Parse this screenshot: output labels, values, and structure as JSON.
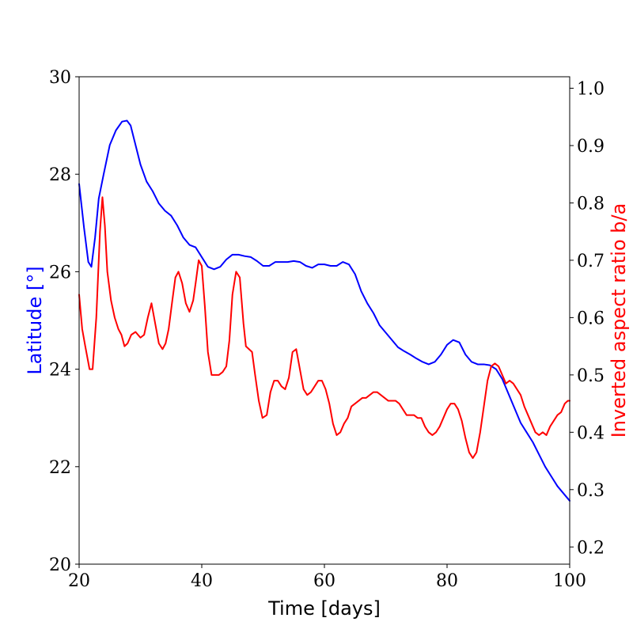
{
  "chart_data": {
    "type": "line",
    "xlabel": "Time [days]",
    "ylabel_left": "Latitude [°]",
    "ylabel_right": "Inverted aspect ratio b/a",
    "xlim": [
      20,
      100
    ],
    "ylim_left": [
      20,
      30
    ],
    "ylim_right": [
      0.17,
      1.02
    ],
    "x_ticks": [
      20,
      40,
      60,
      80,
      100
    ],
    "y_left_ticks": [
      20,
      22,
      24,
      26,
      28,
      30
    ],
    "y_right_ticks": [
      0.2,
      0.3,
      0.4,
      0.5,
      0.6,
      0.7,
      0.8,
      0.9,
      1.0
    ],
    "x_tick_labels": [
      "20",
      "40",
      "60",
      "80",
      "100"
    ],
    "y_left_tick_labels": [
      "20",
      "22",
      "24",
      "26",
      "28",
      "30"
    ],
    "y_right_tick_labels": [
      "0.2",
      "0.3",
      "0.4",
      "0.5",
      "0.6",
      "0.7",
      "0.8",
      "0.9",
      "1.0"
    ],
    "colors": {
      "latitude": "#0000ff",
      "aspect": "#ff0000",
      "axes": "#000000"
    },
    "series": [
      {
        "name": "Latitude",
        "axis": "left",
        "x": [
          20,
          20.8,
          21.5,
          22,
          22.6,
          23.2,
          24,
          25,
          26,
          27,
          27.8,
          28.4,
          29,
          30,
          31,
          32,
          33,
          34,
          35,
          36,
          37,
          38,
          39,
          40,
          41,
          42,
          43,
          44,
          45,
          46,
          47,
          48,
          49,
          50,
          51,
          52,
          53,
          54,
          55,
          56,
          57,
          58,
          59,
          60,
          61,
          62,
          63,
          64,
          65,
          66,
          67,
          68,
          69,
          70,
          71,
          72,
          73,
          74,
          75,
          76,
          77,
          78,
          79,
          80,
          81,
          82,
          83,
          84,
          85,
          86,
          87,
          88,
          89,
          90,
          91,
          92,
          93,
          94,
          95,
          96,
          97,
          98,
          99,
          100
        ],
        "y": [
          27.8,
          26.9,
          26.2,
          26.1,
          26.7,
          27.5,
          28.0,
          28.6,
          28.9,
          29.08,
          29.1,
          29.0,
          28.7,
          28.2,
          27.85,
          27.65,
          27.4,
          27.25,
          27.15,
          26.95,
          26.7,
          26.55,
          26.5,
          26.3,
          26.1,
          26.05,
          26.1,
          26.25,
          26.35,
          26.35,
          26.32,
          26.3,
          26.22,
          26.12,
          26.12,
          26.2,
          26.2,
          26.2,
          26.22,
          26.2,
          26.12,
          26.08,
          26.15,
          26.15,
          26.12,
          26.12,
          26.2,
          26.15,
          25.95,
          25.6,
          25.35,
          25.15,
          24.9,
          24.75,
          24.6,
          24.45,
          24.37,
          24.3,
          24.22,
          24.15,
          24.1,
          24.15,
          24.3,
          24.5,
          24.6,
          24.55,
          24.3,
          24.15,
          24.1,
          24.1,
          24.08,
          24.0,
          23.8,
          23.5,
          23.2,
          22.9,
          22.7,
          22.5,
          22.25,
          22.0,
          21.8,
          21.6,
          21.45,
          21.3
        ]
      },
      {
        "name": "Inverted aspect ratio b/a",
        "axis": "right",
        "x": [
          20,
          20.5,
          21,
          21.7,
          22.2,
          22.8,
          23.4,
          23.8,
          24.2,
          24.6,
          25.2,
          25.8,
          26.4,
          26.9,
          27.4,
          27.9,
          28.5,
          29.2,
          30,
          30.6,
          31.2,
          31.8,
          32.4,
          33,
          33.6,
          34.1,
          34.6,
          35.2,
          35.7,
          36.2,
          36.8,
          37.4,
          38,
          38.6,
          39,
          39.5,
          40,
          40.5,
          41,
          41.6,
          42.2,
          42.8,
          43.4,
          44,
          44.5,
          45,
          45.6,
          46.2,
          46.8,
          47.2,
          47.7,
          48.2,
          48.7,
          49.3,
          49.9,
          50.6,
          51.2,
          51.8,
          52.4,
          53,
          53.6,
          54.2,
          54.8,
          55.4,
          56,
          56.6,
          57.2,
          57.8,
          58.4,
          59,
          59.6,
          60.2,
          60.8,
          61.4,
          62,
          62.6,
          63.2,
          63.8,
          64.4,
          65,
          65.6,
          66.2,
          66.8,
          67.4,
          68,
          68.6,
          69.2,
          69.8,
          70.4,
          71,
          71.6,
          72.2,
          72.8,
          73.4,
          74,
          74.6,
          75.2,
          75.8,
          76.4,
          77,
          77.6,
          78.2,
          78.8,
          79.4,
          80,
          80.6,
          81.2,
          81.8,
          82.4,
          83,
          83.6,
          84.2,
          84.8,
          85.4,
          86,
          86.6,
          87.2,
          87.8,
          88.4,
          89,
          89.6,
          90.2,
          90.8,
          91.4,
          92,
          92.6,
          93.2,
          93.8,
          94.4,
          95,
          95.6,
          96.2,
          96.8,
          97.4,
          98,
          98.6,
          99.2,
          99.7,
          100
        ],
        "y": [
          0.64,
          0.58,
          0.55,
          0.51,
          0.51,
          0.6,
          0.75,
          0.81,
          0.76,
          0.68,
          0.63,
          0.6,
          0.58,
          0.57,
          0.55,
          0.555,
          0.57,
          0.575,
          0.565,
          0.57,
          0.6,
          0.625,
          0.59,
          0.555,
          0.545,
          0.555,
          0.58,
          0.63,
          0.67,
          0.68,
          0.66,
          0.625,
          0.61,
          0.63,
          0.66,
          0.7,
          0.69,
          0.62,
          0.54,
          0.5,
          0.5,
          0.5,
          0.505,
          0.515,
          0.56,
          0.64,
          0.68,
          0.67,
          0.59,
          0.55,
          0.545,
          0.54,
          0.5,
          0.455,
          0.425,
          0.43,
          0.47,
          0.49,
          0.49,
          0.48,
          0.475,
          0.495,
          0.54,
          0.545,
          0.51,
          0.475,
          0.465,
          0.47,
          0.48,
          0.49,
          0.49,
          0.475,
          0.45,
          0.415,
          0.395,
          0.4,
          0.415,
          0.425,
          0.445,
          0.45,
          0.455,
          0.46,
          0.46,
          0.465,
          0.47,
          0.47,
          0.465,
          0.46,
          0.455,
          0.455,
          0.455,
          0.45,
          0.44,
          0.43,
          0.43,
          0.43,
          0.425,
          0.425,
          0.41,
          0.4,
          0.395,
          0.4,
          0.41,
          0.425,
          0.44,
          0.45,
          0.45,
          0.44,
          0.42,
          0.39,
          0.365,
          0.355,
          0.365,
          0.4,
          0.445,
          0.49,
          0.515,
          0.52,
          0.515,
          0.5,
          0.485,
          0.49,
          0.485,
          0.475,
          0.465,
          0.445,
          0.43,
          0.415,
          0.4,
          0.395,
          0.4,
          0.395,
          0.41,
          0.42,
          0.43,
          0.435,
          0.45,
          0.455,
          0.455
        ]
      }
    ]
  }
}
